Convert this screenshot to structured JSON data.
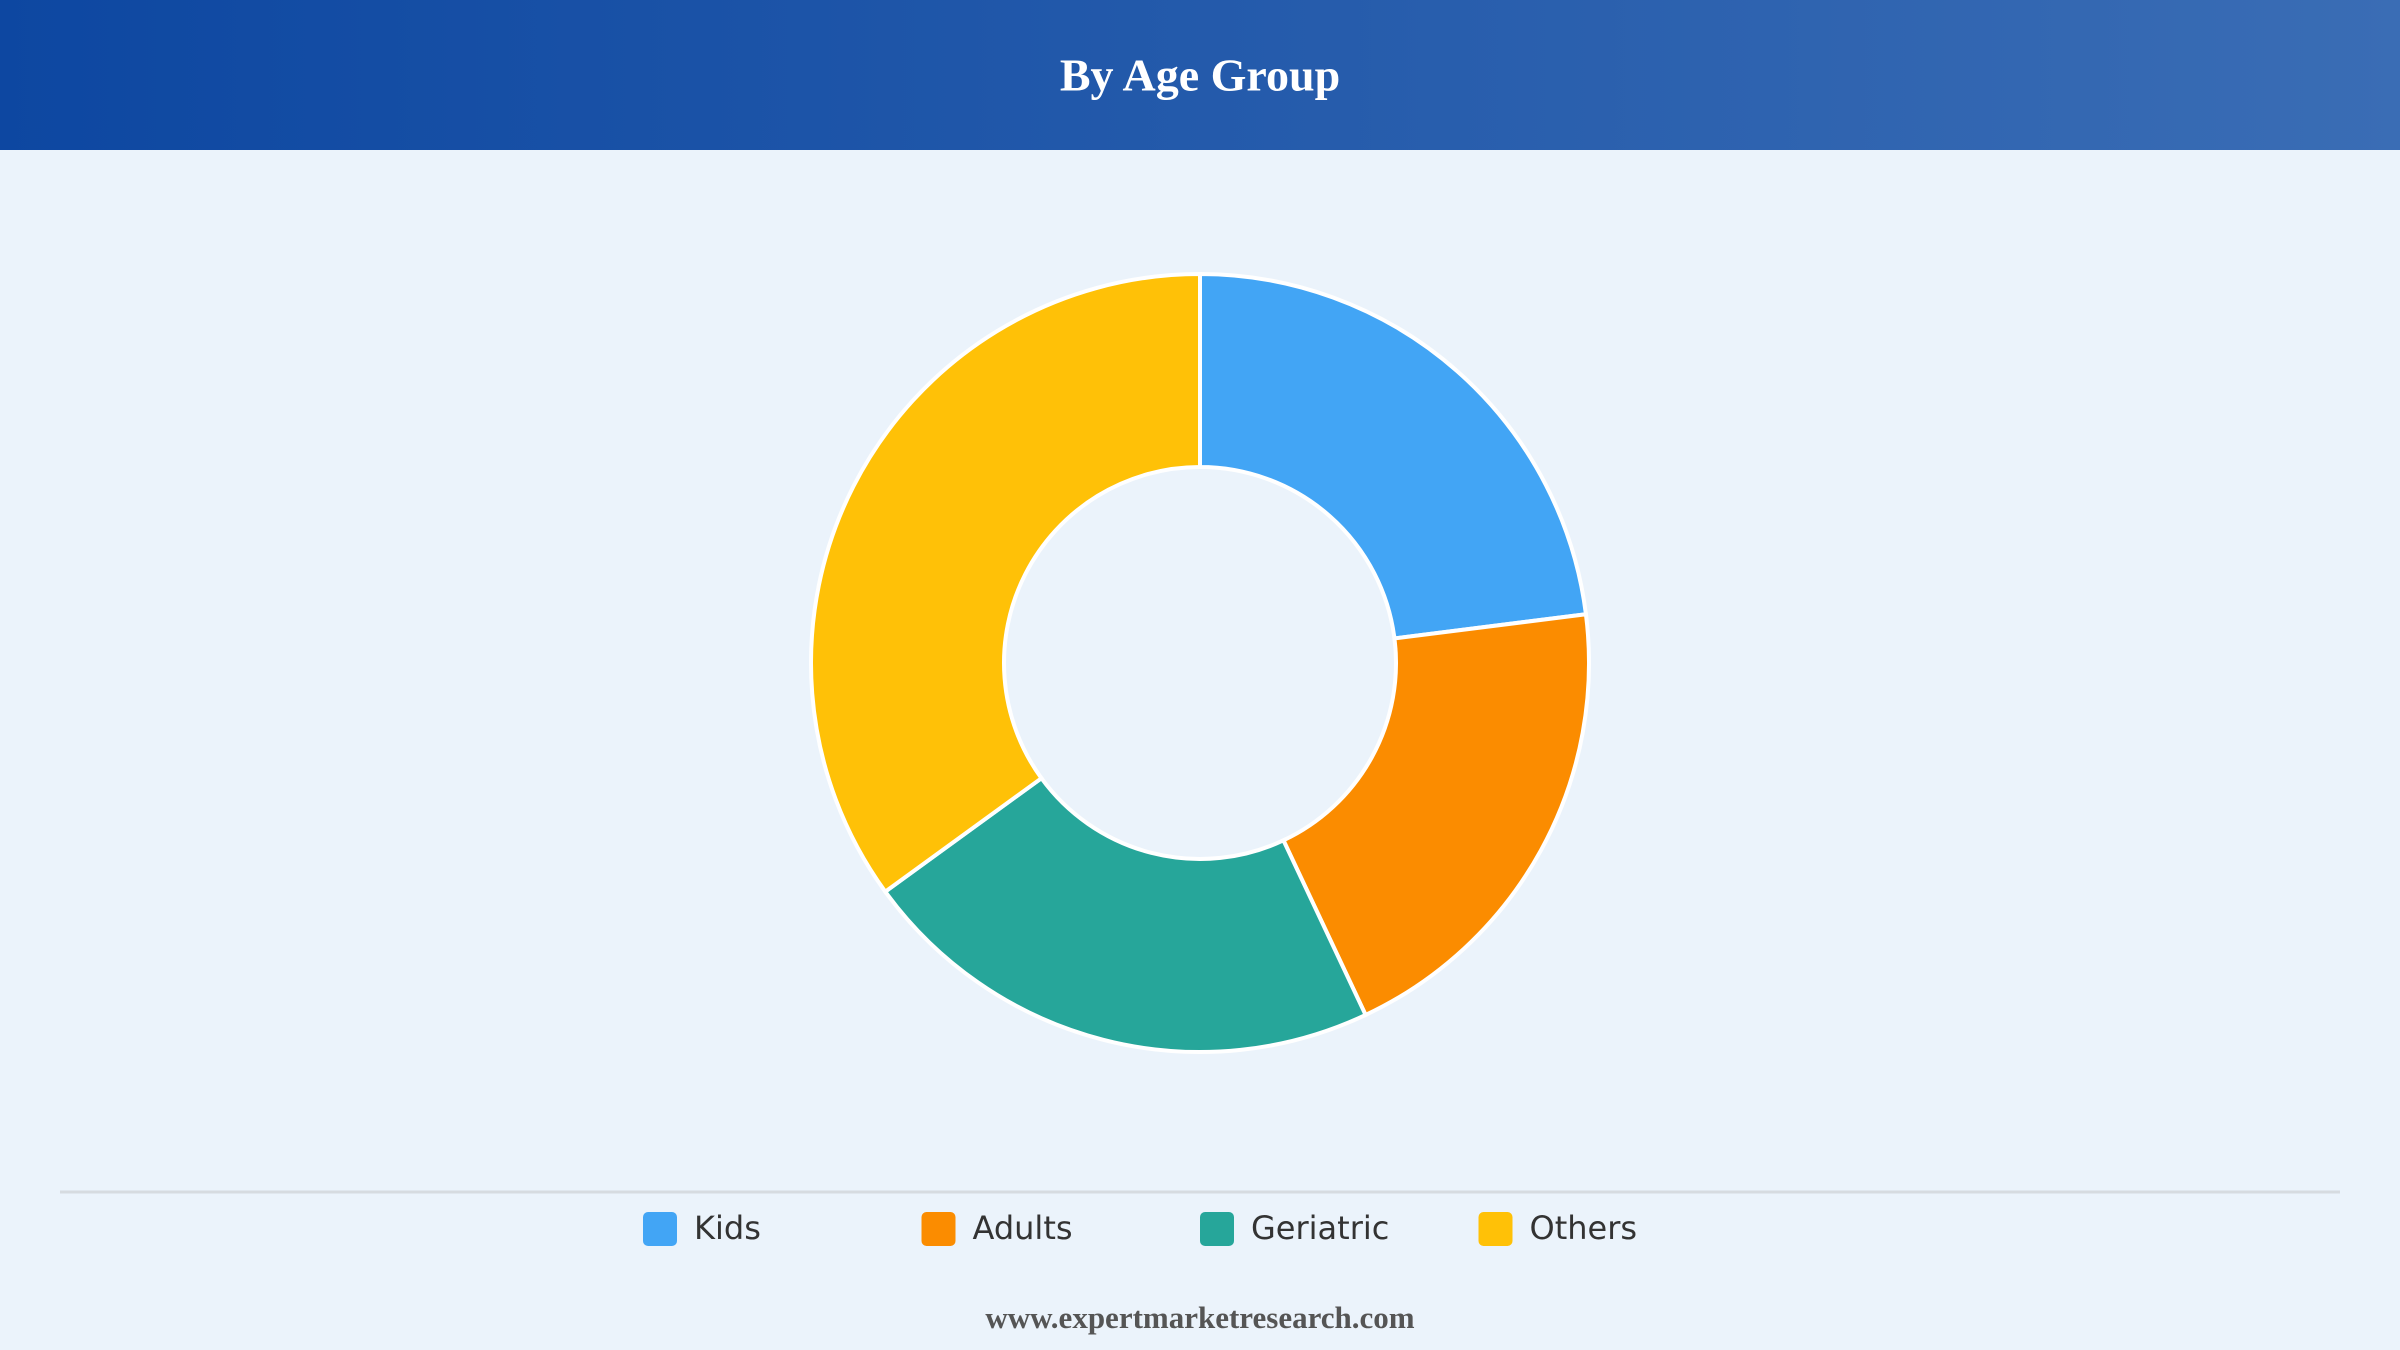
{
  "chart_data": {
    "type": "donut",
    "title": "By Age Group",
    "categories": [
      "Kids",
      "Adults",
      "Geriatric",
      "Others"
    ],
    "values": [
      23,
      20,
      22,
      35
    ],
    "colors": [
      "#42a5f5",
      "#fb8c00",
      "#26a69a",
      "#ffc107"
    ],
    "legend": "bottom"
  },
  "footer": "www.expertmarketresearch.com"
}
